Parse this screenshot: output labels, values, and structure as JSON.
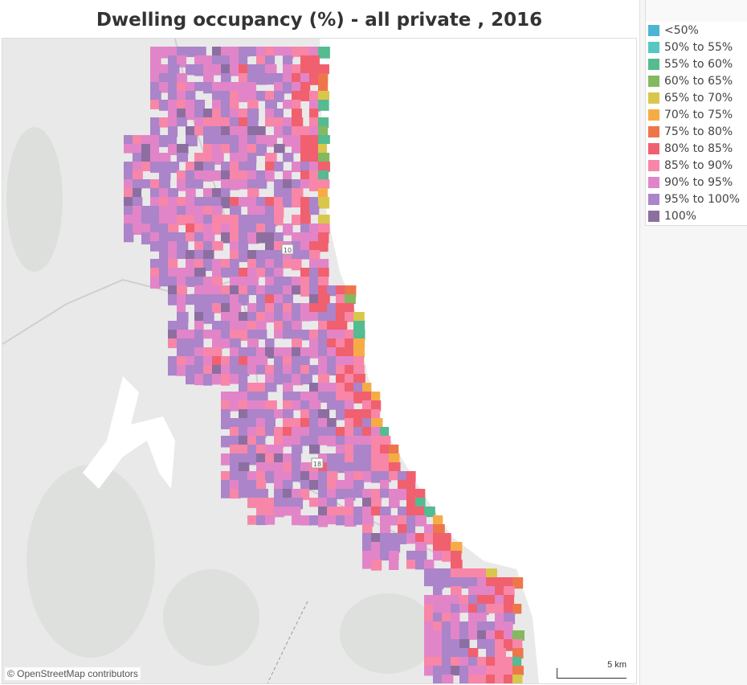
{
  "title": "Dwelling occupancy (%) - all private , 2016",
  "map": {
    "credit": "© OpenStreetMap contributors",
    "scale_label": "5 km",
    "road_shields": [
      "10",
      "18"
    ]
  },
  "legend": {
    "items": [
      {
        "label": "<50%",
        "color": "#4bb5d6"
      },
      {
        "label": "50% to 55%",
        "color": "#57c7c2"
      },
      {
        "label": "55% to 60%",
        "color": "#55bb90"
      },
      {
        "label": "60% to 65%",
        "color": "#83b95f"
      },
      {
        "label": "65% to 70%",
        "color": "#d9c74c"
      },
      {
        "label": "70% to 75%",
        "color": "#f6ac46"
      },
      {
        "label": "75% to 80%",
        "color": "#ee764b"
      },
      {
        "label": "80% to 85%",
        "color": "#f0606f"
      },
      {
        "label": "85% to 90%",
        "color": "#f786a8"
      },
      {
        "label": "90% to 95%",
        "color": "#e185c8"
      },
      {
        "label": "95% to 100%",
        "color": "#ab84c9"
      },
      {
        "label": "100%",
        "color": "#8c6fa0"
      }
    ]
  }
}
